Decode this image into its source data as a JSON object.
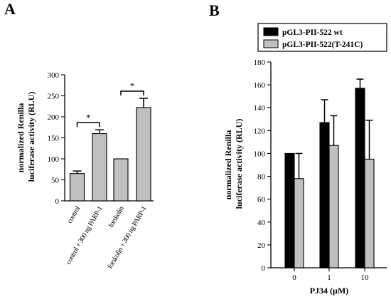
{
  "chart_data": [
    {
      "panel": "A",
      "type": "bar",
      "categories": [
        "control",
        "control + 300 ng PARP-1",
        "forskolin",
        "forskolin + 300 ng PARP-1"
      ],
      "values": [
        65,
        160,
        100,
        222
      ],
      "errors": [
        6,
        9,
        0,
        22
      ],
      "ylabel_lines": [
        "normalized Renilla",
        "luciferase activity (RLU)"
      ],
      "ylim": [
        0,
        300
      ],
      "yticks": [
        0,
        50,
        100,
        150,
        200,
        250,
        300
      ],
      "bar_color": "#c0c0c0",
      "significance": [
        {
          "from": 0,
          "to": 1,
          "label": "*"
        },
        {
          "from": 2,
          "to": 3,
          "label": "*"
        }
      ]
    },
    {
      "panel": "B",
      "type": "bar",
      "categories": [
        "0",
        "1",
        "10"
      ],
      "xlabel": "PJ34 (µM)",
      "ylabel_lines": [
        "normalized Renilla",
        "luciferase activity (RLU)"
      ],
      "ylim": [
        0,
        180
      ],
      "yticks": [
        0,
        20,
        40,
        60,
        80,
        100,
        120,
        140,
        160,
        180
      ],
      "legend_position": "top",
      "series": [
        {
          "name": "pGL3-PII-522 wt",
          "values": [
            100,
            127,
            157
          ],
          "errors": [
            0,
            20,
            8
          ],
          "color": "#000000"
        },
        {
          "name": "pGL3-PII-522(T-241C)",
          "values": [
            78,
            107,
            95
          ],
          "errors": [
            22,
            26,
            34
          ],
          "color": "#c0c0c0"
        }
      ]
    }
  ]
}
